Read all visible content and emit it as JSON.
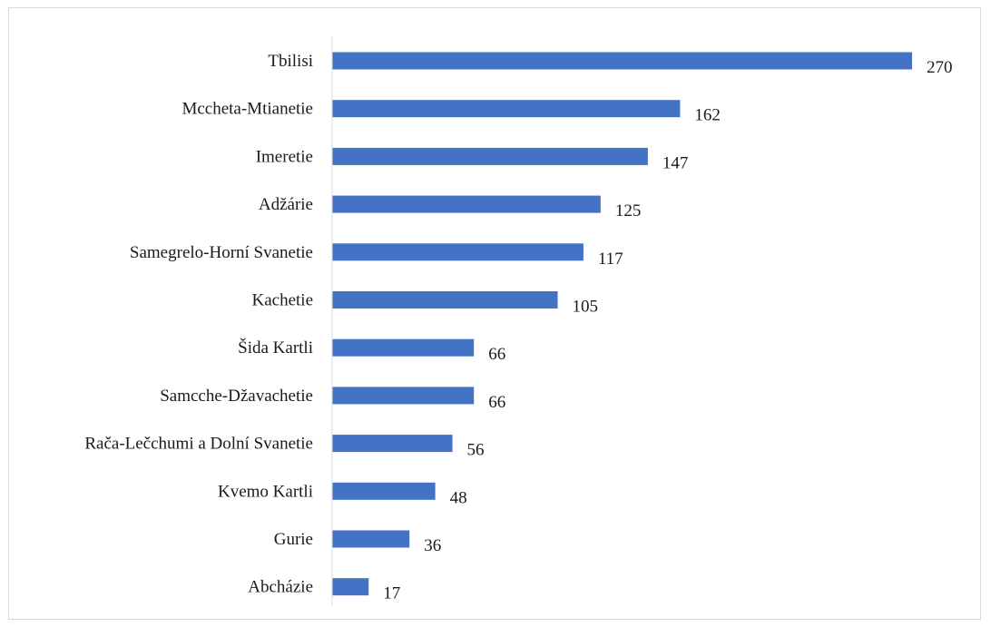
{
  "chart_data": {
    "type": "bar",
    "orientation": "horizontal",
    "categories": [
      "Tbilisi",
      "Mccheta-Mtianetie",
      "Imeretie",
      "Adžárie",
      "Samegrelo-Horní Svanetie",
      "Kachetie",
      "Šida Kartli",
      "Samcche-Džavachetie",
      "Rača-Lečchumi a Dolní Svanetie",
      "Kvemo Kartli",
      "Gurie",
      "Abcházie"
    ],
    "values": [
      270,
      162,
      147,
      125,
      117,
      105,
      66,
      66,
      56,
      48,
      36,
      17
    ],
    "value_labels": [
      "270",
      "162",
      "147",
      "125",
      "117",
      "105",
      "66",
      "66",
      "56",
      "48",
      "36",
      "17"
    ],
    "xlim": [
      0,
      270
    ],
    "grid": false,
    "legend": "none",
    "bar_color": "#4472c4",
    "axis_color": "#d9d9d9",
    "text_color": "#1a1a1a"
  }
}
